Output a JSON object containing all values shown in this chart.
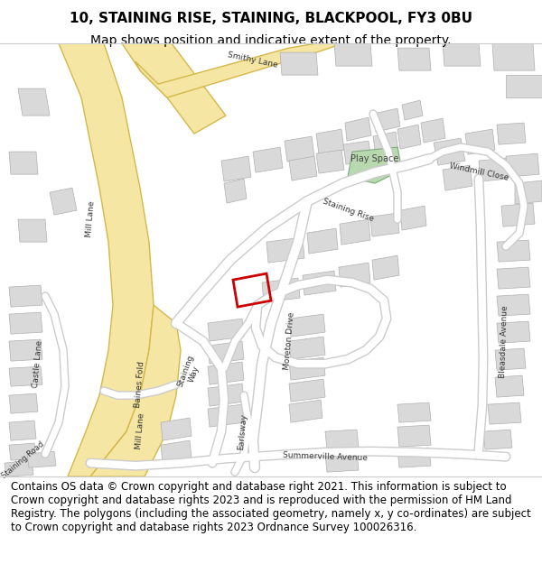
{
  "title": "10, STAINING RISE, STAINING, BLACKPOOL, FY3 0BU",
  "subtitle": "Map shows position and indicative extent of the property.",
  "footer": "Contains OS data © Crown copyright and database right 2021. This information is subject to Crown copyright and database rights 2023 and is reproduced with the permission of HM Land Registry. The polygons (including the associated geometry, namely x, y co-ordinates) are subject to Crown copyright and database rights 2023 Ordnance Survey 100026316.",
  "map_bg": "#ffffff",
  "road_color_major": "#f5e6a3",
  "road_outline": "#d4b84a",
  "building_color": "#d9d9d9",
  "building_outline": "#b0b0b0",
  "green_color": "#b8d9b0",
  "highlight_color": "#cc0000",
  "title_fontsize": 11,
  "subtitle_fontsize": 10,
  "footer_fontsize": 8.5,
  "header_bg": "#ffffff",
  "footer_bg": "#ffffff"
}
